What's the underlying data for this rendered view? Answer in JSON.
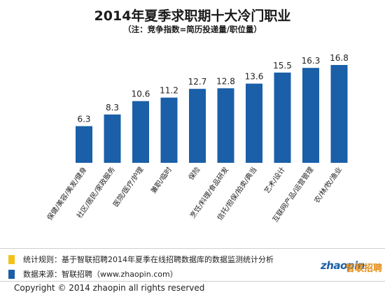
{
  "chart_data": {
    "type": "bar",
    "title": "2014年夏季求职期十大冷门职业",
    "subtitle": "（注：竞争指数=简历投递量/职位量）",
    "categories": [
      "保健/美容/美发/健身",
      "社区/居民/家政服务",
      "医院/医疗/护理",
      "兼职/临时",
      "保险",
      "烹饪/料理/食品研发",
      "信托/担保/拍卖/典当",
      "艺术/设计",
      "互联网产品/运营管理",
      "农/林/牧/渔业"
    ],
    "values": [
      6.3,
      8.3,
      10.6,
      11.2,
      12.7,
      12.8,
      13.6,
      15.5,
      16.3,
      16.8
    ],
    "ylim": [
      0,
      18
    ],
    "grid": false,
    "bar_color": "#1a5fa8"
  },
  "notes": [
    {
      "text": "统计规则：基于智联招聘2014年夏季在线招聘数据库的数据监测统计分析",
      "color": "#f2c21b"
    },
    {
      "text": "数据来源：智联招聘（www.zhaopin.com）",
      "color": "#1a5fa8"
    }
  ],
  "copyright": "Copyright   ©  2014 zhaopin all rights reserved",
  "logo": {
    "main": "zhaopin",
    "cn": "智联招聘"
  }
}
